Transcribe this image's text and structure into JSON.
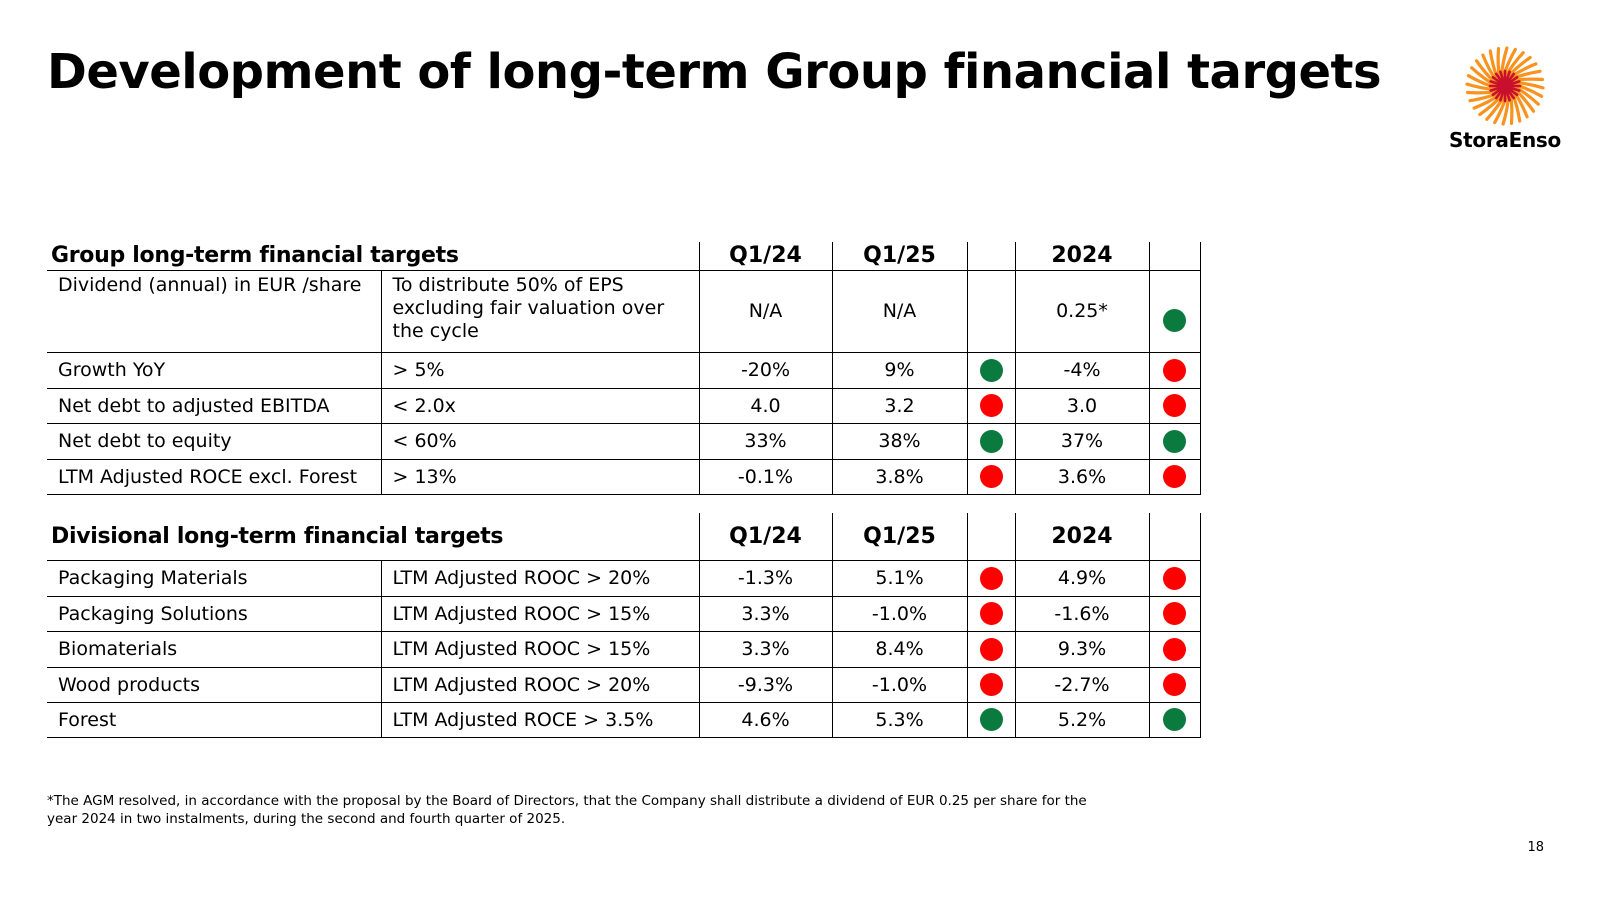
{
  "title": "Development of long-term Group financial targets",
  "logo": {
    "text": "StoraEnso"
  },
  "colors": {
    "green": "#0b7a3e",
    "red": "#ff0000",
    "logo_outer": "#f7931e",
    "logo_inner": "#c8102e"
  },
  "group": {
    "heading": "Group long-term financial targets",
    "col_q124": "Q1/24",
    "col_q125": "Q1/25",
    "col_2024": "2024",
    "rows": [
      {
        "metric": "Dividend (annual) in EUR /share",
        "target": "To distribute 50% of EPS excluding fair valuation over the cycle",
        "q124": "N/A",
        "q125": "N/A",
        "q125_status": "",
        "y2024": "0.25*",
        "y2024_status": "green"
      },
      {
        "metric": "Growth YoY",
        "target": "> 5%",
        "q124": "-20%",
        "q125": "9%",
        "q125_status": "green",
        "y2024": "-4%",
        "y2024_status": "red"
      },
      {
        "metric": "Net debt to adjusted EBITDA",
        "target": "< 2.0x",
        "q124": "4.0",
        "q125": "3.2",
        "q125_status": "red",
        "y2024": "3.0",
        "y2024_status": "red"
      },
      {
        "metric": "Net debt to equity",
        "target": "< 60%",
        "q124": "33%",
        "q125": "38%",
        "q125_status": "green",
        "y2024": "37%",
        "y2024_status": "green"
      },
      {
        "metric": "LTM Adjusted ROCE excl. Forest",
        "target": "> 13%",
        "q124": "-0.1%",
        "q125": "3.8%",
        "q125_status": "red",
        "y2024": "3.6%",
        "y2024_status": "red"
      }
    ]
  },
  "divisional": {
    "heading": "Divisional long-term financial targets",
    "col_q124": "Q1/24",
    "col_q125": "Q1/25",
    "col_2024": "2024",
    "rows": [
      {
        "metric": "Packaging Materials",
        "target": "LTM Adjusted ROOC > 20%",
        "q124": "-1.3%",
        "q125": "5.1%",
        "q125_status": "red",
        "y2024": "4.9%",
        "y2024_status": "red"
      },
      {
        "metric": "Packaging Solutions",
        "target": "LTM Adjusted ROOC > 15%",
        "q124": "3.3%",
        "q125": "-1.0%",
        "q125_status": "red",
        "y2024": "-1.6%",
        "y2024_status": "red"
      },
      {
        "metric": "Biomaterials",
        "target": "LTM Adjusted ROOC > 15%",
        "q124": "3.3%",
        "q125": "8.4%",
        "q125_status": "red",
        "y2024": "9.3%",
        "y2024_status": "red"
      },
      {
        "metric": "Wood products",
        "target": "LTM Adjusted ROOC > 20%",
        "q124": "-9.3%",
        "q125": "-1.0%",
        "q125_status": "red",
        "y2024": "-2.7%",
        "y2024_status": "red"
      },
      {
        "metric": "Forest",
        "target": "LTM Adjusted ROCE > 3.5%",
        "q124": "4.6%",
        "q125": "5.3%",
        "q125_status": "green",
        "y2024": "5.2%",
        "y2024_status": "green"
      }
    ]
  },
  "footnote": "*The AGM resolved, in accordance with the proposal by the Board of Directors, that the Company shall distribute a dividend of EUR 0.25 per share for the year 2024 in two instalments, during the second and fourth quarter of 2025.",
  "page_number": "18"
}
